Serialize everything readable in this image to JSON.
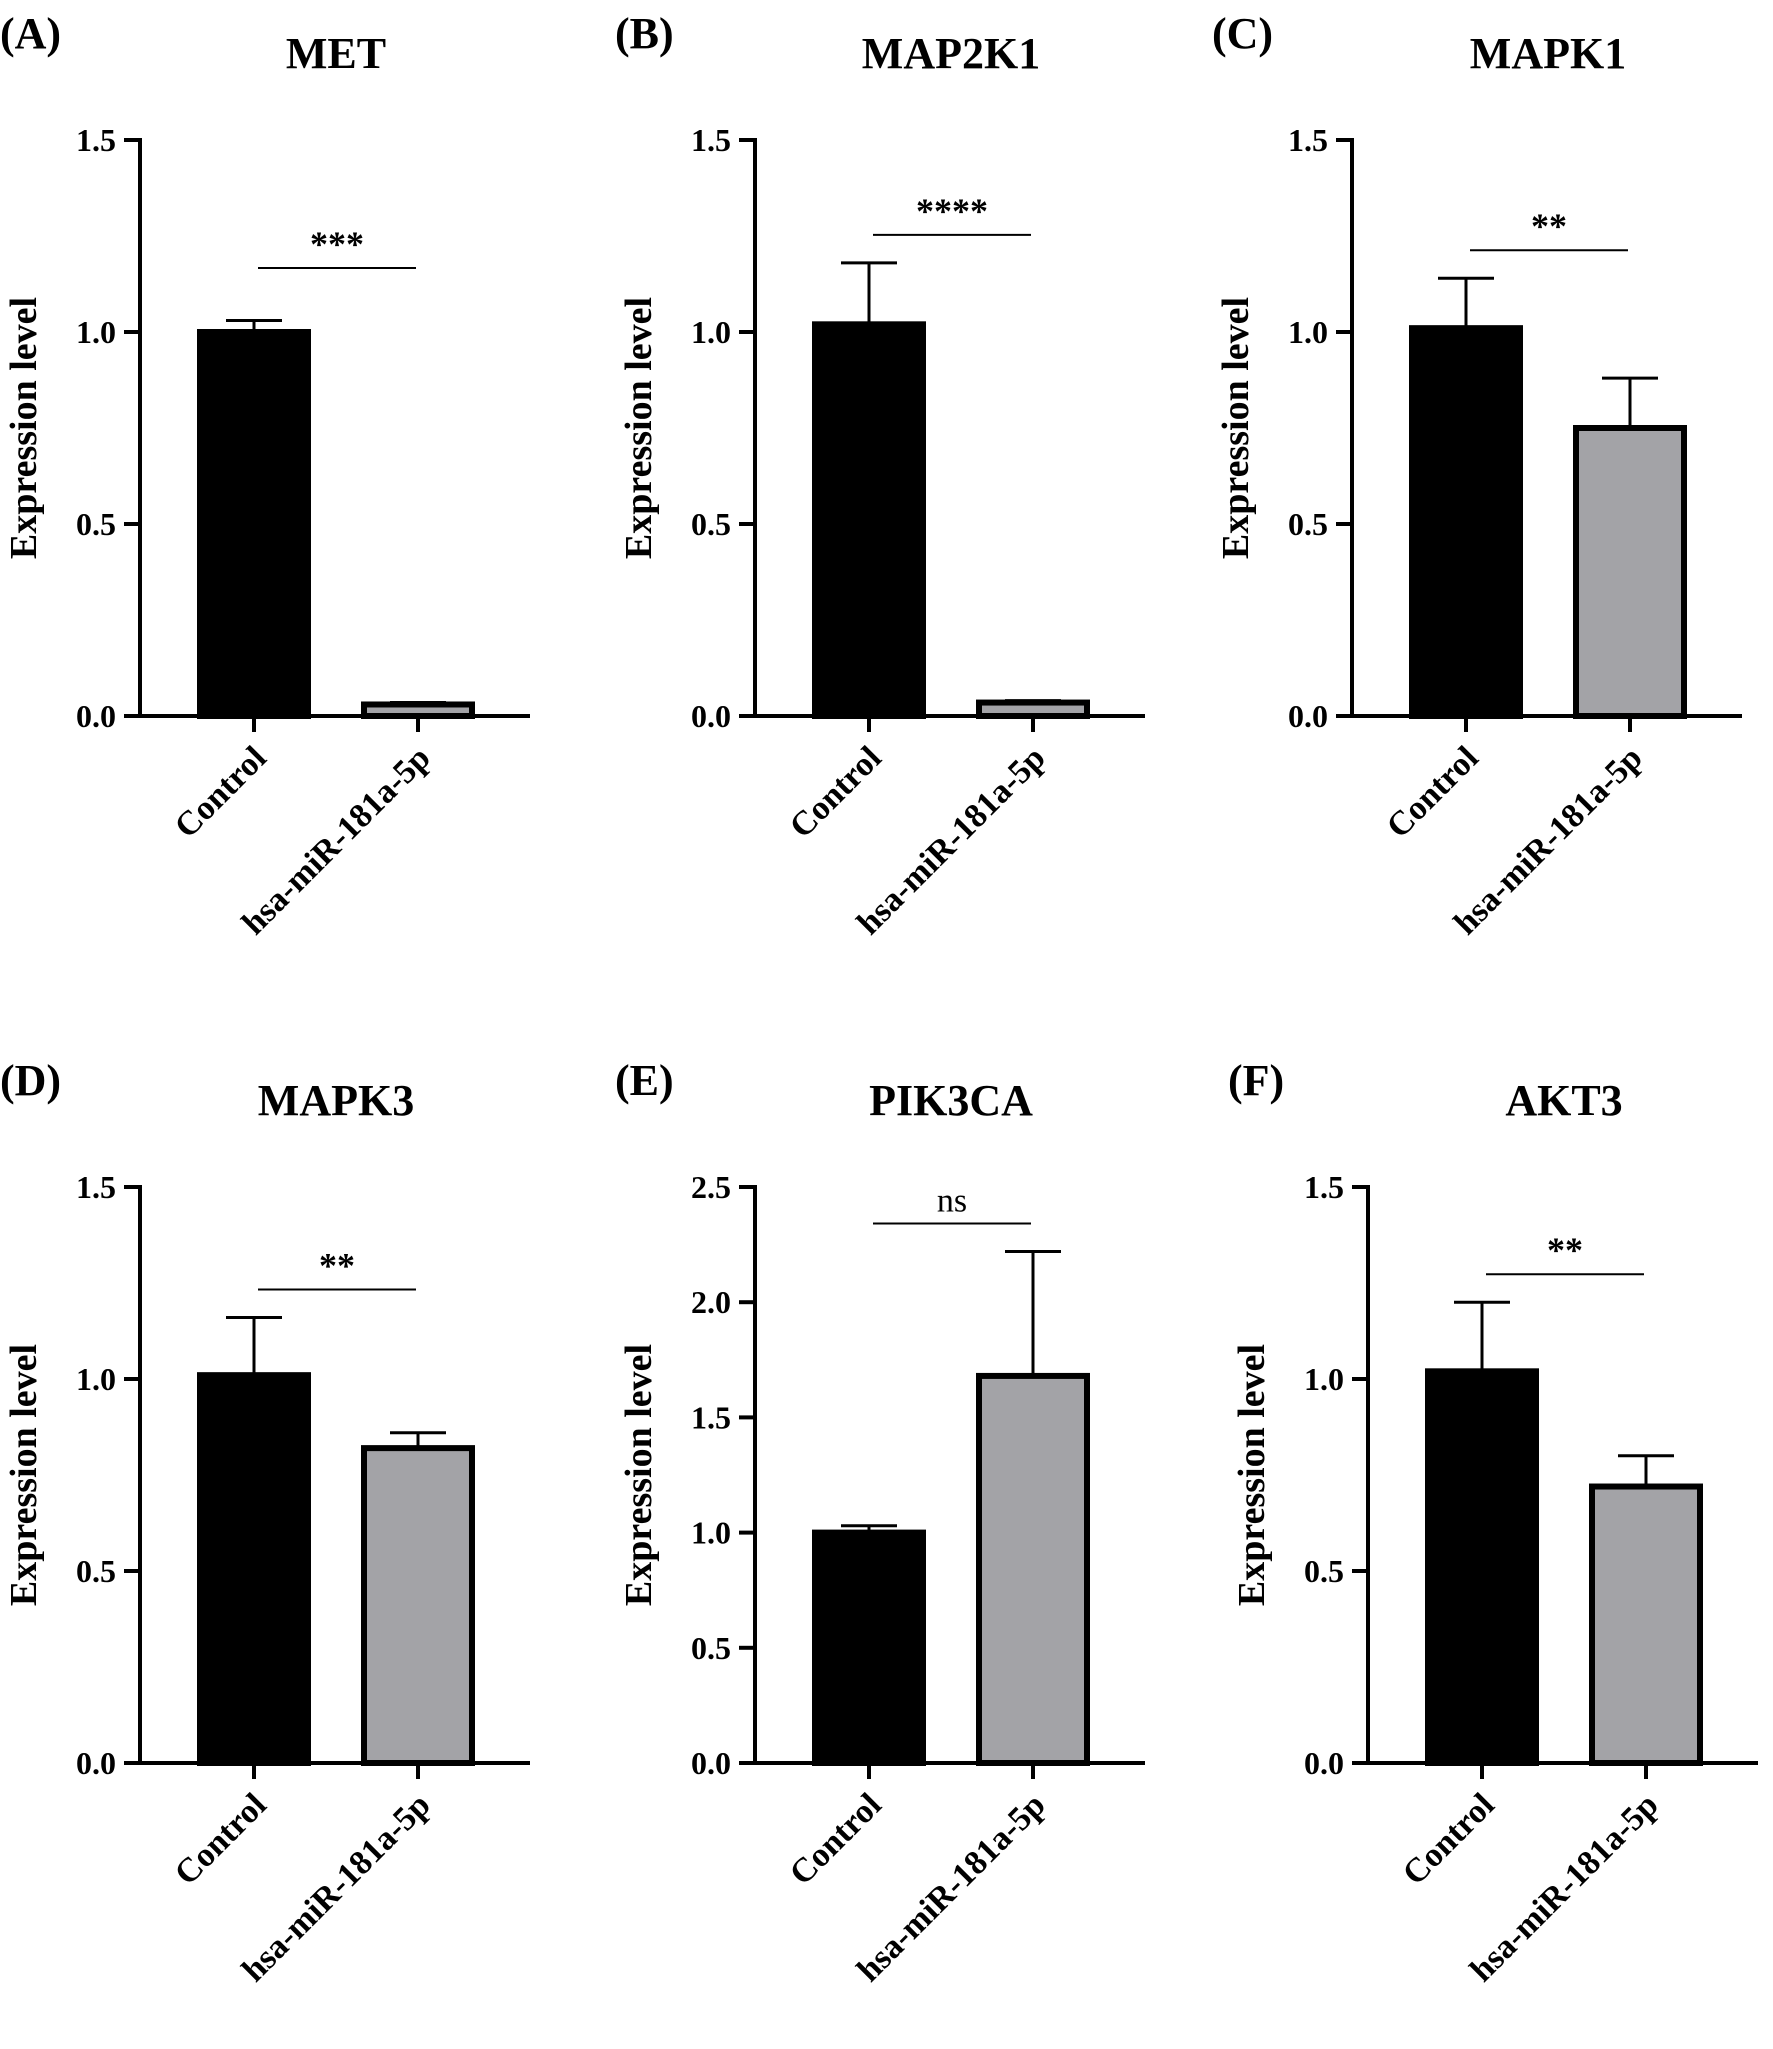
{
  "figure": {
    "background": "#ffffff",
    "control_color": "#000000",
    "treated_color": "#a3a3a7"
  },
  "chart_data": [
    {
      "type": "bar",
      "panel_label": "(A)",
      "title": "MET",
      "categories": [
        "Control",
        "hsa-miR-181a-5p"
      ],
      "values": [
        1.0,
        0.03
      ],
      "errors": [
        0.03,
        0.005
      ],
      "ylabel": "Expression level",
      "ylim": [
        0,
        1.5
      ],
      "yticks": [
        "0.0",
        "0.5",
        "1.0",
        "1.5"
      ],
      "significance": "***"
    },
    {
      "type": "bar",
      "panel_label": "(B)",
      "title": "MAP2K1",
      "categories": [
        "Control",
        "hsa-miR-181a-5p"
      ],
      "values": [
        1.02,
        0.035
      ],
      "errors": [
        0.16,
        0.005
      ],
      "ylabel": "Expression level",
      "ylim": [
        0,
        1.5
      ],
      "yticks": [
        "0.0",
        "0.5",
        "1.0",
        "1.5"
      ],
      "significance": "****"
    },
    {
      "type": "bar",
      "panel_label": "(C)",
      "title": "MAPK1",
      "categories": [
        "Control",
        "hsa-miR-181a-5p"
      ],
      "values": [
        1.01,
        0.75
      ],
      "errors": [
        0.13,
        0.13
      ],
      "ylabel": "Expression level",
      "ylim": [
        0,
        1.5
      ],
      "yticks": [
        "0.0",
        "0.5",
        "1.0",
        "1.5"
      ],
      "significance": "**"
    },
    {
      "type": "bar",
      "panel_label": "(D)",
      "title": "MAPK3",
      "categories": [
        "Control",
        "hsa-miR-181a-5p"
      ],
      "values": [
        1.01,
        0.82
      ],
      "errors": [
        0.15,
        0.04
      ],
      "ylabel": "Expression level",
      "ylim": [
        0,
        1.5
      ],
      "yticks": [
        "0.0",
        "0.5",
        "1.0",
        "1.5"
      ],
      "significance": "**"
    },
    {
      "type": "bar",
      "panel_label": "(E)",
      "title": "PIK3CA",
      "categories": [
        "Control",
        "hsa-miR-181a-5p"
      ],
      "values": [
        1.0,
        1.68
      ],
      "errors": [
        0.03,
        0.54
      ],
      "ylabel": "Expression level",
      "ylim": [
        0,
        2.5
      ],
      "yticks": [
        "0.0",
        "0.5",
        "1.0",
        "1.5",
        "2.0",
        "2.5"
      ],
      "significance": "ns"
    },
    {
      "type": "bar",
      "panel_label": "(F)",
      "title": "AKT3",
      "categories": [
        "Control",
        "hsa-miR-181a-5p"
      ],
      "values": [
        1.02,
        0.72
      ],
      "errors": [
        0.18,
        0.08
      ],
      "ylabel": "Expression level",
      "ylim": [
        0,
        1.5
      ],
      "yticks": [
        "0.0",
        "0.5",
        "1.0",
        "1.5"
      ],
      "significance": "**"
    }
  ]
}
